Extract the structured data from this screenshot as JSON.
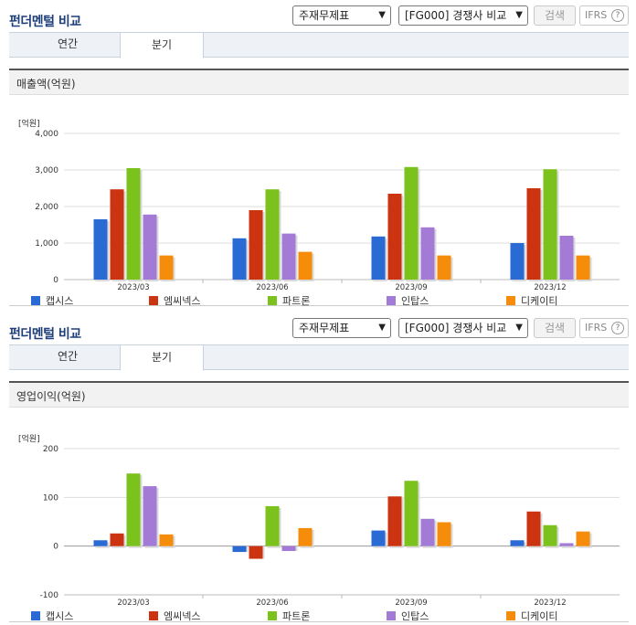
{
  "sections": [
    {
      "title": "펀더멘털 비교",
      "select1": "주재무제표",
      "select2": "[FG000] 경쟁사 비교",
      "search_label": "검색",
      "ifrs_label": "IFRS",
      "tabs": [
        "연간",
        "분기"
      ],
      "active_tab": 1,
      "chart_title": "매출액(억원)"
    },
    {
      "title": "펀더멘털 비교",
      "select1": "주재무제표",
      "select2": "[FG000] 경쟁사 비교",
      "search_label": "검색",
      "ifrs_label": "IFRS",
      "tabs": [
        "연간",
        "분기"
      ],
      "active_tab": 1,
      "chart_title": "영업이익(억원)"
    }
  ],
  "chart_data": [
    {
      "type": "bar",
      "title": "매출액(억원)",
      "unit_label": "[억원]",
      "categories": [
        "2023/03",
        "2023/06",
        "2023/09",
        "2023/12"
      ],
      "ylim": [
        0,
        4000
      ],
      "yticks": [
        0,
        1000,
        2000,
        3000,
        4000
      ],
      "ytick_labels": [
        "0",
        "1,000",
        "2,000",
        "3,000",
        "4,000"
      ],
      "grid": true,
      "legend_position": "bottom",
      "series": [
        {
          "name": "캡시스",
          "color": "#2a6ad4",
          "values": [
            1650,
            1130,
            1180,
            1000
          ]
        },
        {
          "name": "엠씨넥스",
          "color": "#cc3310",
          "values": [
            2470,
            1900,
            2350,
            2500
          ]
        },
        {
          "name": "파트론",
          "color": "#7cc21d",
          "values": [
            3050,
            2470,
            3080,
            3020
          ]
        },
        {
          "name": "인탑스",
          "color": "#a37bd6",
          "values": [
            1780,
            1260,
            1430,
            1200
          ]
        },
        {
          "name": "디케이티",
          "color": "#f58d0a",
          "values": [
            660,
            760,
            660,
            660
          ]
        }
      ]
    },
    {
      "type": "bar",
      "title": "영업이익(억원)",
      "unit_label": "[억원]",
      "categories": [
        "2023/03",
        "2023/06",
        "2023/09",
        "2023/12"
      ],
      "ylim": [
        -100,
        200
      ],
      "yticks": [
        -100,
        0,
        100,
        200
      ],
      "ytick_labels": [
        "-100",
        "0",
        "100",
        "200"
      ],
      "grid": true,
      "legend_position": "bottom",
      "series": [
        {
          "name": "캡시스",
          "color": "#2a6ad4",
          "values": [
            12,
            -12,
            32,
            12
          ]
        },
        {
          "name": "엠씨넥스",
          "color": "#cc3310",
          "values": [
            26,
            -26,
            102,
            71
          ]
        },
        {
          "name": "파트론",
          "color": "#7cc21d",
          "values": [
            149,
            82,
            134,
            43
          ]
        },
        {
          "name": "인탑스",
          "color": "#a37bd6",
          "values": [
            123,
            -10,
            56,
            6
          ]
        },
        {
          "name": "디케이티",
          "color": "#f58d0a",
          "values": [
            24,
            37,
            49,
            30
          ]
        }
      ]
    }
  ]
}
